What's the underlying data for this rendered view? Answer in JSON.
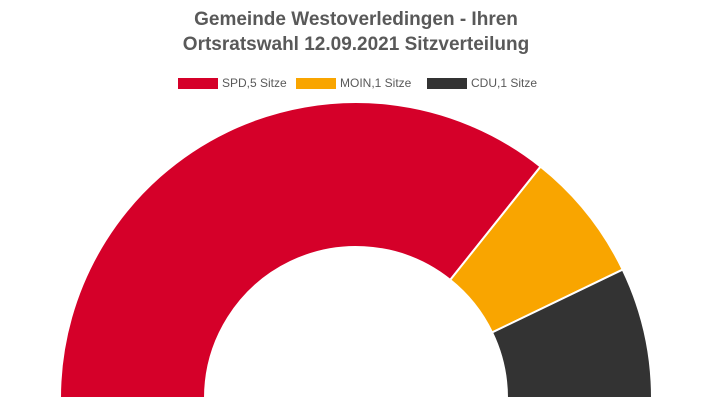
{
  "chart_data": {
    "type": "half-donut",
    "title": [
      "Gemeinde Westoverledingen - Ihren",
      "Ortsratswahl 12.09.2021 Sitzverteilung"
    ],
    "categories": [
      "SPD,5 Sitze",
      "MOIN,1 Sitze",
      "CDU,1 Sitze"
    ],
    "values": [
      5,
      1,
      1
    ],
    "colors": [
      "#d50029",
      "#f9a500",
      "#333333"
    ],
    "legend": "top"
  }
}
